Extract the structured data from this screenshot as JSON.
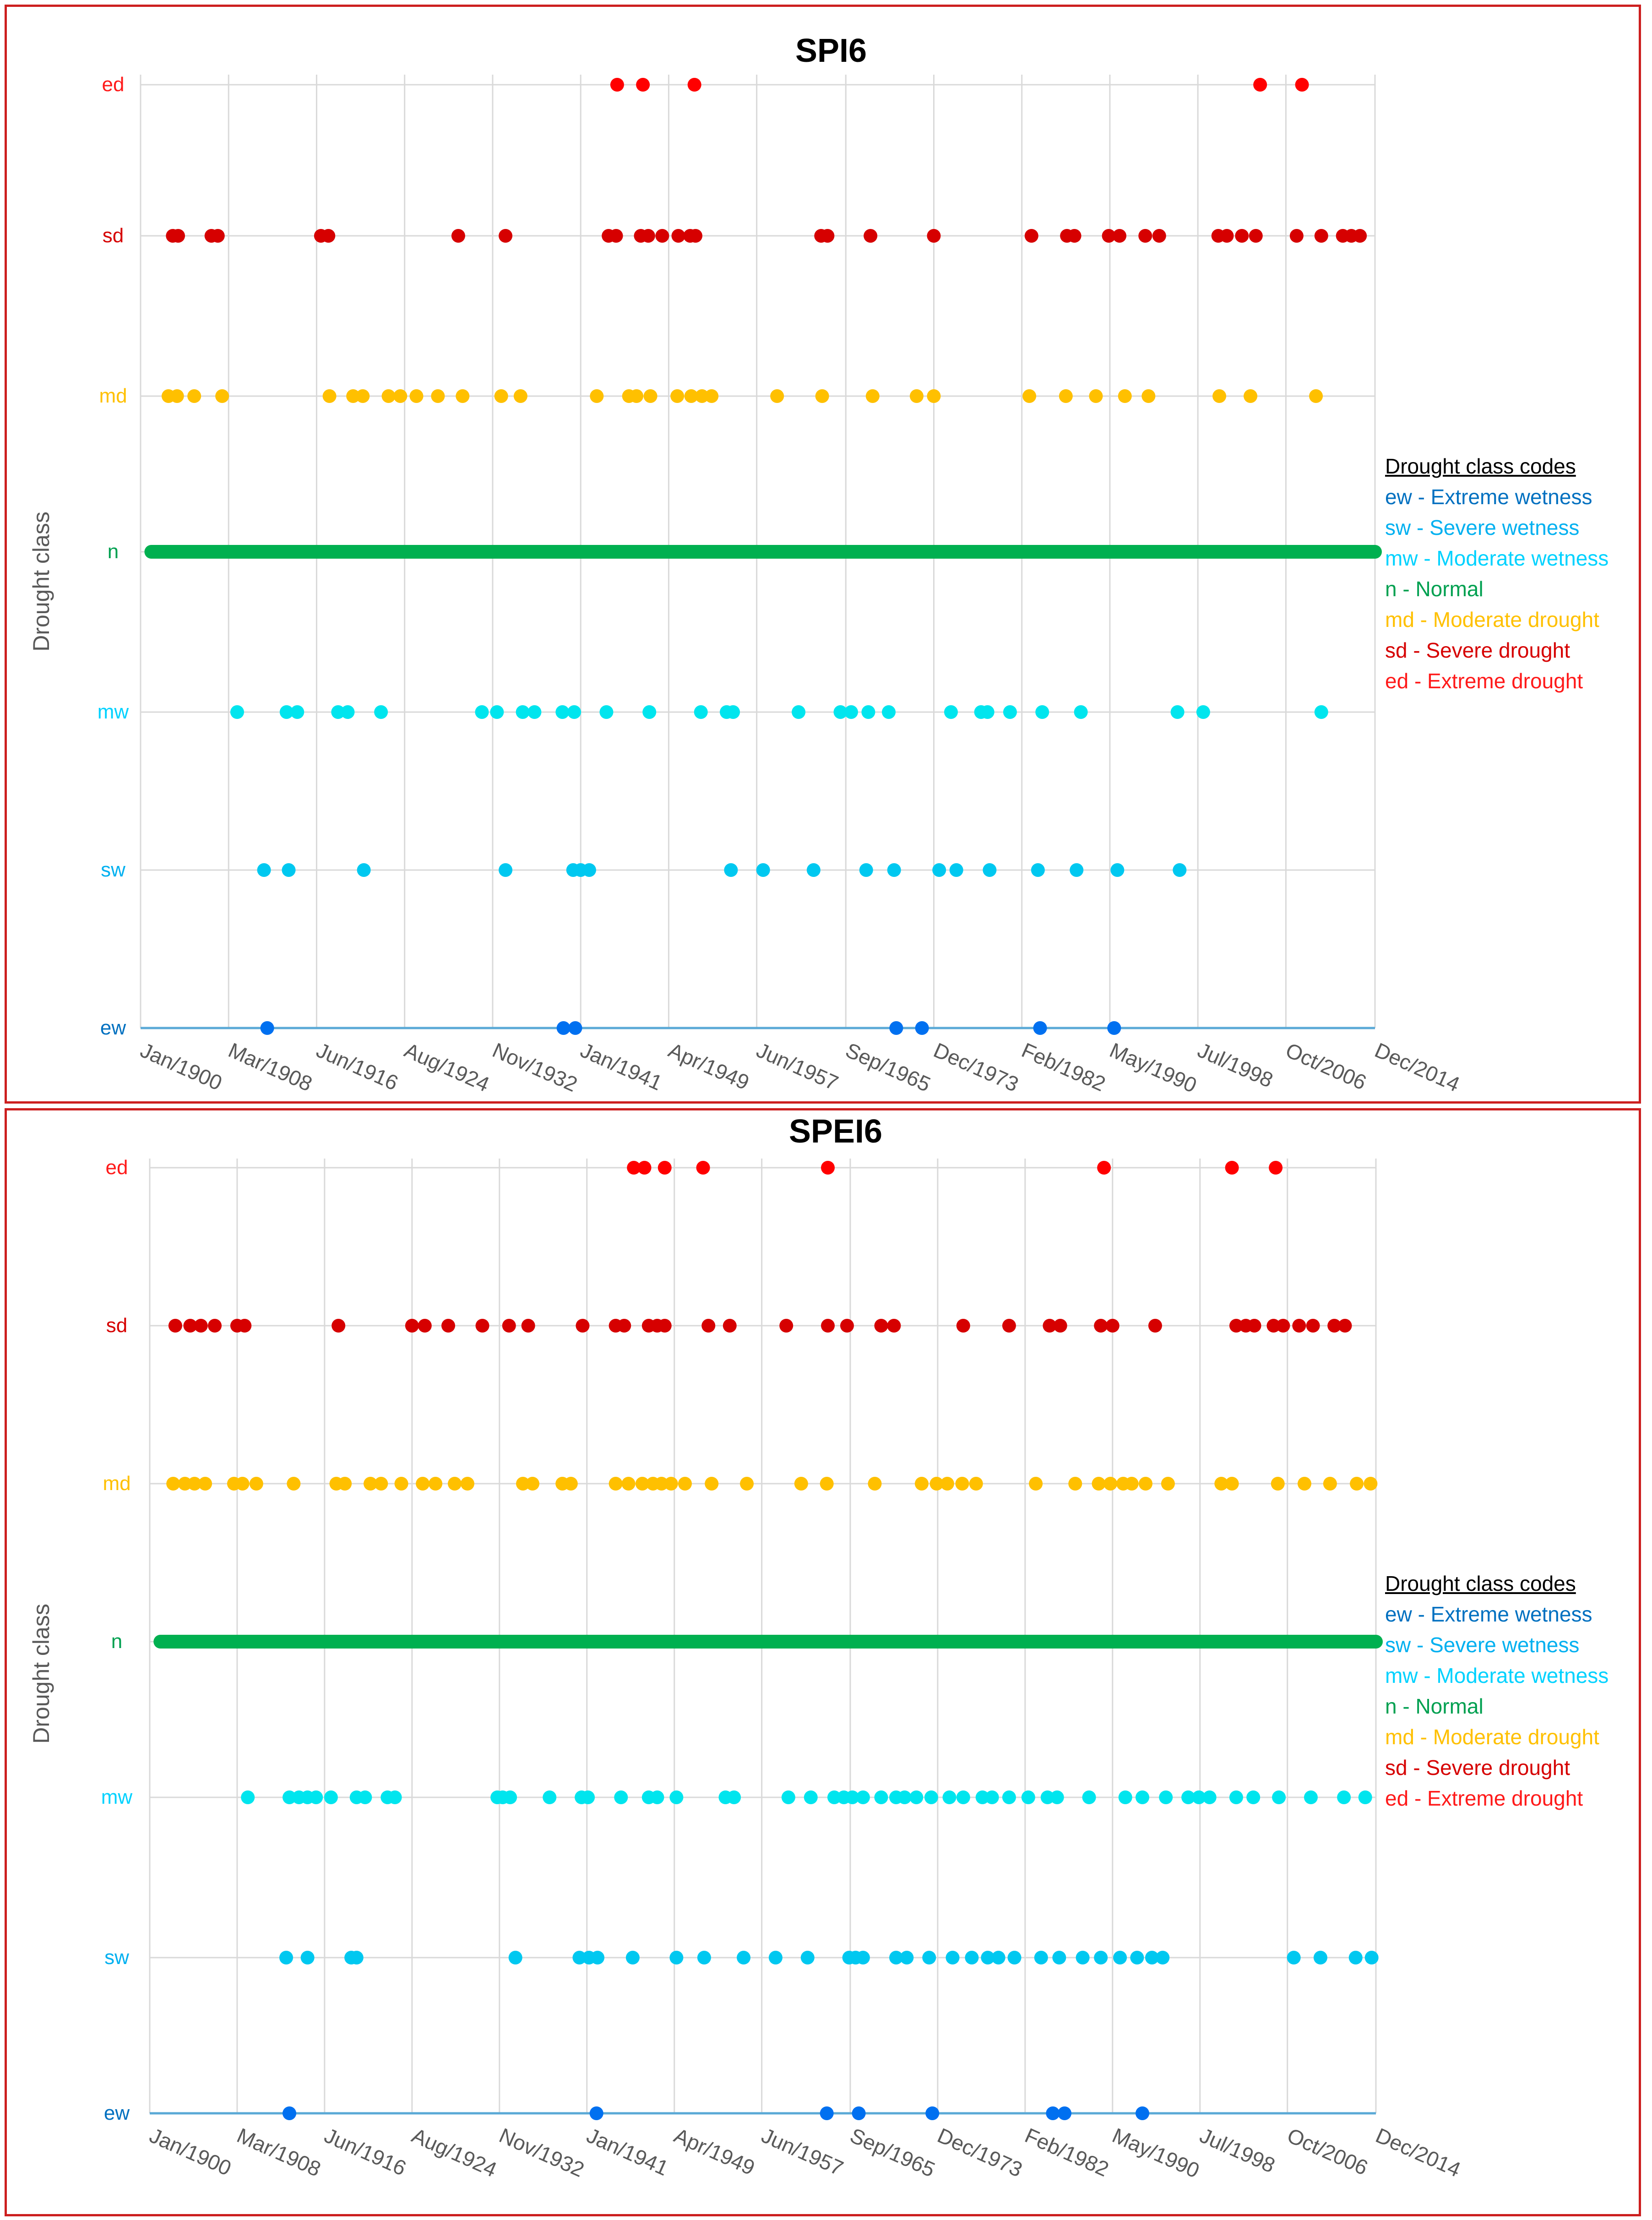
{
  "colors": {
    "ed": "#ff0000",
    "sd": "#d60000",
    "md": "#ffc000",
    "n": "#00b050",
    "mw": "#00e5ee",
    "sw": "#00c8f0",
    "ew": "#0070f0",
    "grid": "#d9d9d9",
    "axis": "#5aa9d6",
    "tick": "#595959",
    "border": "#cc1f1f"
  },
  "legend": {
    "title": "Drought class codes",
    "items": [
      {
        "text": "ew - Extreme wetness",
        "color": "#0070c0"
      },
      {
        "text": "sw - Severe wetness",
        "color": "#00b0f0"
      },
      {
        "text": "mw - Moderate wetness",
        "color": "#00d2ff"
      },
      {
        "text": "n - Normal",
        "color": "#00a050"
      },
      {
        "text": "md - Moderate drought",
        "color": "#ffc000"
      },
      {
        "text": "sd - Severe drought",
        "color": "#d60000"
      },
      {
        "text": "ed - Extreme drought",
        "color": "#ff1a1a"
      }
    ]
  },
  "chart_data": [
    {
      "type": "scatter",
      "title": "SPI6",
      "ylabel": "Drought class",
      "xlabel": "",
      "xlim": [
        1900.0,
        2015.0
      ],
      "categories": [
        "ew",
        "sw",
        "mw",
        "n",
        "md",
        "sd",
        "ed"
      ],
      "category_colors": [
        "#0070c0",
        "#00b0f0",
        "#00d2ff",
        "#00a050",
        "#ffc000",
        "#d60000",
        "#ff1a1a"
      ],
      "tick_labels": [
        "Jan/1900",
        "Mar/1908",
        "Jun/1916",
        "Aug/1924",
        "Nov/1932",
        "Jan/1941",
        "Apr/1949",
        "Jun/1957",
        "Sep/1965",
        "Dec/1973",
        "Feb/1982",
        "May/1990",
        "Jul/1998",
        "Oct/2006",
        "Dec/2014"
      ],
      "tick_values": [
        1900.0,
        1908.2,
        1916.4,
        1924.6,
        1932.8,
        1941.0,
        1949.2,
        1957.4,
        1965.7,
        1973.9,
        1982.1,
        1990.3,
        1998.5,
        2006.7,
        2015.0
      ],
      "normal_range": [
        1901.0,
        2015.0
      ],
      "series": [
        {
          "name": "ed",
          "x": [
            1944.4,
            1946.8,
            1951.6,
            2004.3,
            2008.2
          ]
        },
        {
          "name": "sd",
          "x": [
            1903.0,
            1903.5,
            1906.6,
            1907.2,
            1916.8,
            1917.5,
            1929.6,
            1934.0,
            1943.6,
            1944.3,
            1946.6,
            1947.3,
            1948.6,
            1950.1,
            1951.2,
            1951.7,
            1963.4,
            1964.0,
            1968.0,
            1973.9,
            1983.0,
            1986.3,
            1987.0,
            1990.2,
            1991.2,
            1993.6,
            1994.9,
            2000.4,
            2001.2,
            2002.6,
            2003.9,
            2007.7,
            2010.0,
            2012.0,
            2012.8,
            2013.6
          ]
        },
        {
          "name": "md",
          "x": [
            1902.6,
            1903.4,
            1905.0,
            1907.6,
            1917.6,
            1919.8,
            1920.7,
            1923.1,
            1924.2,
            1925.7,
            1927.7,
            1930.0,
            1933.6,
            1935.4,
            1942.5,
            1945.5,
            1946.2,
            1947.5,
            1950.0,
            1951.3,
            1952.3,
            1953.2,
            1959.3,
            1963.5,
            1968.2,
            1972.3,
            1973.9,
            1982.8,
            1986.2,
            1989.0,
            1991.7,
            1993.9,
            2000.5,
            2003.4,
            2009.5
          ]
        },
        {
          "name": "n",
          "x": []
        },
        {
          "name": "mw",
          "x": [
            1909.0,
            1913.6,
            1914.6,
            1918.4,
            1919.3,
            1922.4,
            1931.8,
            1933.2,
            1935.6,
            1936.7,
            1939.3,
            1940.4,
            1943.4,
            1947.4,
            1952.2,
            1954.6,
            1955.2,
            1961.3,
            1965.2,
            1966.2,
            1967.8,
            1969.7,
            1975.5,
            1978.3,
            1978.9,
            1981.0,
            1984.0,
            1987.6,
            1996.6,
            1999.0,
            2010.0
          ]
        },
        {
          "name": "sw",
          "x": [
            1911.5,
            1913.8,
            1920.8,
            1934.0,
            1940.3,
            1941.0,
            1941.8,
            1955.0,
            1958.0,
            1962.7,
            1967.6,
            1970.2,
            1974.4,
            1976.0,
            1979.1,
            1983.6,
            1987.2,
            1991.0,
            1996.8
          ]
        },
        {
          "name": "ew",
          "x": [
            1911.8,
            1939.4,
            1940.5,
            1970.4,
            1972.8,
            1983.8,
            1990.7
          ]
        }
      ]
    },
    {
      "type": "scatter",
      "title": "SPEI6",
      "ylabel": "Drought class",
      "xlabel": "",
      "xlim": [
        1900.0,
        2015.0
      ],
      "categories": [
        "ew",
        "sw",
        "mw",
        "n",
        "md",
        "sd",
        "ed"
      ],
      "category_colors": [
        "#0070c0",
        "#00b0f0",
        "#00d2ff",
        "#00a050",
        "#ffc000",
        "#d60000",
        "#ff1a1a"
      ],
      "tick_labels": [
        "Jan/1900",
        "Mar/1908",
        "Jun/1916",
        "Aug/1924",
        "Nov/1932",
        "Jan/1941",
        "Apr/1949",
        "Jun/1957",
        "Sep/1965",
        "Dec/1973",
        "Feb/1982",
        "May/1990",
        "Jul/1998",
        "Oct/2006",
        "Dec/2014"
      ],
      "tick_values": [
        1900.0,
        1908.2,
        1916.4,
        1924.6,
        1932.8,
        1941.0,
        1949.2,
        1957.4,
        1965.7,
        1973.9,
        1982.1,
        1990.3,
        1998.5,
        2006.7,
        2015.0
      ],
      "normal_range": [
        1901.0,
        2015.0
      ],
      "series": [
        {
          "name": "ed",
          "x": [
            1945.4,
            1946.4,
            1948.3,
            1951.9,
            1963.6,
            1989.5,
            2001.5,
            2005.6
          ]
        },
        {
          "name": "sd",
          "x": [
            1902.4,
            1903.8,
            1904.8,
            1906.1,
            1908.2,
            1908.9,
            1917.7,
            1924.6,
            1925.8,
            1928.0,
            1931.2,
            1933.7,
            1935.5,
            1940.6,
            1943.7,
            1944.5,
            1946.8,
            1947.6,
            1948.3,
            1952.4,
            1954.4,
            1959.7,
            1963.6,
            1965.4,
            1968.6,
            1969.8,
            1976.3,
            1980.6,
            1984.4,
            1985.4,
            1989.2,
            1990.3,
            1994.3,
            2001.9,
            2002.8,
            2003.6,
            2005.4,
            2006.3,
            2007.8,
            2009.1,
            2011.1,
            2012.1
          ]
        },
        {
          "name": "md",
          "x": [
            1902.2,
            1903.3,
            1904.2,
            1905.2,
            1907.9,
            1908.7,
            1910.0,
            1913.5,
            1917.5,
            1918.3,
            1920.7,
            1921.7,
            1923.6,
            1925.6,
            1926.8,
            1928.6,
            1929.8,
            1935.0,
            1935.9,
            1938.7,
            1939.5,
            1943.7,
            1944.9,
            1946.2,
            1947.2,
            1948.0,
            1948.9,
            1950.2,
            1952.7,
            1956.0,
            1961.1,
            1963.5,
            1968.0,
            1972.4,
            1973.8,
            1974.8,
            1976.2,
            1977.5,
            1983.1,
            1986.8,
            1989.0,
            1990.1,
            1991.3,
            1992.1,
            1993.4,
            1995.5,
            2000.5,
            2001.5,
            2005.8,
            2008.3,
            2010.7,
            2013.2,
            2014.5
          ]
        },
        {
          "name": "n",
          "x": []
        },
        {
          "name": "mw",
          "x": [
            1909.2,
            1913.1,
            1914.0,
            1914.8,
            1915.6,
            1917.0,
            1919.4,
            1920.2,
            1922.3,
            1923.0,
            1932.6,
            1933.1,
            1933.8,
            1937.5,
            1940.5,
            1941.1,
            1944.2,
            1946.8,
            1947.6,
            1949.4,
            1954.0,
            1954.8,
            1959.9,
            1962.0,
            1964.2,
            1965.1,
            1965.9,
            1966.9,
            1968.6,
            1970.0,
            1970.8,
            1971.9,
            1973.3,
            1975.0,
            1976.3,
            1978.1,
            1979.0,
            1980.6,
            1982.4,
            1984.2,
            1985.1,
            1988.1,
            1991.5,
            1993.1,
            1995.3,
            1997.4,
            1998.4,
            1999.4,
            2001.9,
            2003.5,
            2005.9,
            2008.9,
            2012.0,
            2014.0
          ]
        },
        {
          "name": "sw",
          "x": [
            1912.8,
            1914.8,
            1918.9,
            1919.4,
            1934.3,
            1940.3,
            1941.2,
            1942.0,
            1945.3,
            1949.4,
            1952.0,
            1955.7,
            1958.7,
            1961.7,
            1965.6,
            1966.2,
            1966.9,
            1970.0,
            1971.0,
            1973.1,
            1975.3,
            1977.1,
            1978.6,
            1979.6,
            1981.1,
            1983.6,
            1985.3,
            1987.5,
            1989.2,
            1991.0,
            1992.6,
            1994.0,
            1995.0,
            2007.3,
            2009.8,
            2013.1,
            2014.6
          ]
        },
        {
          "name": "ew",
          "x": [
            1913.1,
            1941.9,
            1963.5,
            1966.5,
            1973.4,
            1984.7,
            1985.8,
            1993.1
          ]
        }
      ]
    }
  ]
}
